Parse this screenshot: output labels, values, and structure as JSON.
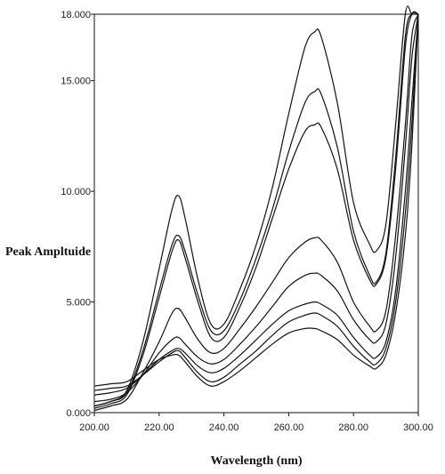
{
  "chart_data": {
    "type": "line",
    "title": "",
    "xlabel": "Wavelength (nm)",
    "ylabel": "Peak Ampltuide",
    "xlim": [
      200,
      300
    ],
    "ylim": [
      0,
      18
    ],
    "grid": false,
    "x_ticks": [
      200,
      220,
      240,
      260,
      280,
      300
    ],
    "x_tick_labels": [
      "200.00",
      "220.00",
      "240.00",
      "260.00",
      "280.00",
      "300.00"
    ],
    "y_ticks": [
      0,
      5,
      10,
      15,
      18
    ],
    "y_tick_labels": [
      "0.000",
      "5.000",
      "10.000",
      "15.000",
      "18.000"
    ],
    "x": [
      200,
      205,
      210,
      215,
      220,
      224,
      226,
      228,
      232,
      236,
      240,
      245,
      250,
      255,
      260,
      265,
      268,
      270,
      275,
      280,
      285,
      287,
      290,
      293,
      296,
      298,
      300
    ],
    "series": [
      {
        "values": [
          0.3,
          0.5,
          1.0,
          3.2,
          6.5,
          9.2,
          9.8,
          8.8,
          6.0,
          4.0,
          4.0,
          5.6,
          7.6,
          10.2,
          13.5,
          16.5,
          17.2,
          17.0,
          14.0,
          9.5,
          7.6,
          7.3,
          8.5,
          13.0,
          18.0,
          18.0,
          18.0
        ]
      },
      {
        "values": [
          0.3,
          0.5,
          0.9,
          2.8,
          5.5,
          7.6,
          8.0,
          7.3,
          5.3,
          3.7,
          3.7,
          5.1,
          7.0,
          9.2,
          11.8,
          14.0,
          14.5,
          14.4,
          12.0,
          8.2,
          6.2,
          5.9,
          7.2,
          11.5,
          17.0,
          18.0,
          18.0
        ]
      },
      {
        "values": [
          0.2,
          0.4,
          0.8,
          2.6,
          5.2,
          7.3,
          7.8,
          7.0,
          5.0,
          3.4,
          3.4,
          4.8,
          6.6,
          8.8,
          11.0,
          12.7,
          13.0,
          12.9,
          11.0,
          7.8,
          6.0,
          5.8,
          7.0,
          11.0,
          16.5,
          18.0,
          18.0
        ]
      },
      {
        "values": [
          0.1,
          0.3,
          0.6,
          1.8,
          3.2,
          4.5,
          4.7,
          4.3,
          3.3,
          2.7,
          2.9,
          3.8,
          4.8,
          5.9,
          7.0,
          7.7,
          7.9,
          7.8,
          6.8,
          5.0,
          3.9,
          3.7,
          4.6,
          8.0,
          13.0,
          17.0,
          18.0
        ]
      },
      {
        "values": [
          0.5,
          0.6,
          0.9,
          1.7,
          2.7,
          3.3,
          3.4,
          3.1,
          2.5,
          2.2,
          2.4,
          3.1,
          3.9,
          4.8,
          5.7,
          6.2,
          6.3,
          6.2,
          5.5,
          4.2,
          3.3,
          3.2,
          4.0,
          7.0,
          12.0,
          16.0,
          18.0
        ]
      },
      {
        "values": [
          0.8,
          0.9,
          1.1,
          1.7,
          2.4,
          2.8,
          2.9,
          2.7,
          2.1,
          1.8,
          2.0,
          2.6,
          3.3,
          4.0,
          4.6,
          4.9,
          5.0,
          4.9,
          4.4,
          3.4,
          2.6,
          2.5,
          3.2,
          5.5,
          10.0,
          14.0,
          18.0
        ]
      },
      {
        "values": [
          1.0,
          1.1,
          1.2,
          1.7,
          2.3,
          2.7,
          2.8,
          2.5,
          1.8,
          1.4,
          1.6,
          2.2,
          2.8,
          3.5,
          4.1,
          4.4,
          4.5,
          4.4,
          3.9,
          3.0,
          2.3,
          2.2,
          2.9,
          5.0,
          9.0,
          13.0,
          18.0
        ]
      },
      {
        "values": [
          1.2,
          1.3,
          1.4,
          1.9,
          2.4,
          2.6,
          2.6,
          2.3,
          1.6,
          1.2,
          1.4,
          1.9,
          2.5,
          3.1,
          3.6,
          3.8,
          3.8,
          3.7,
          3.3,
          2.6,
          2.1,
          2.0,
          2.6,
          4.5,
          8.0,
          12.0,
          18.0
        ]
      }
    ]
  }
}
